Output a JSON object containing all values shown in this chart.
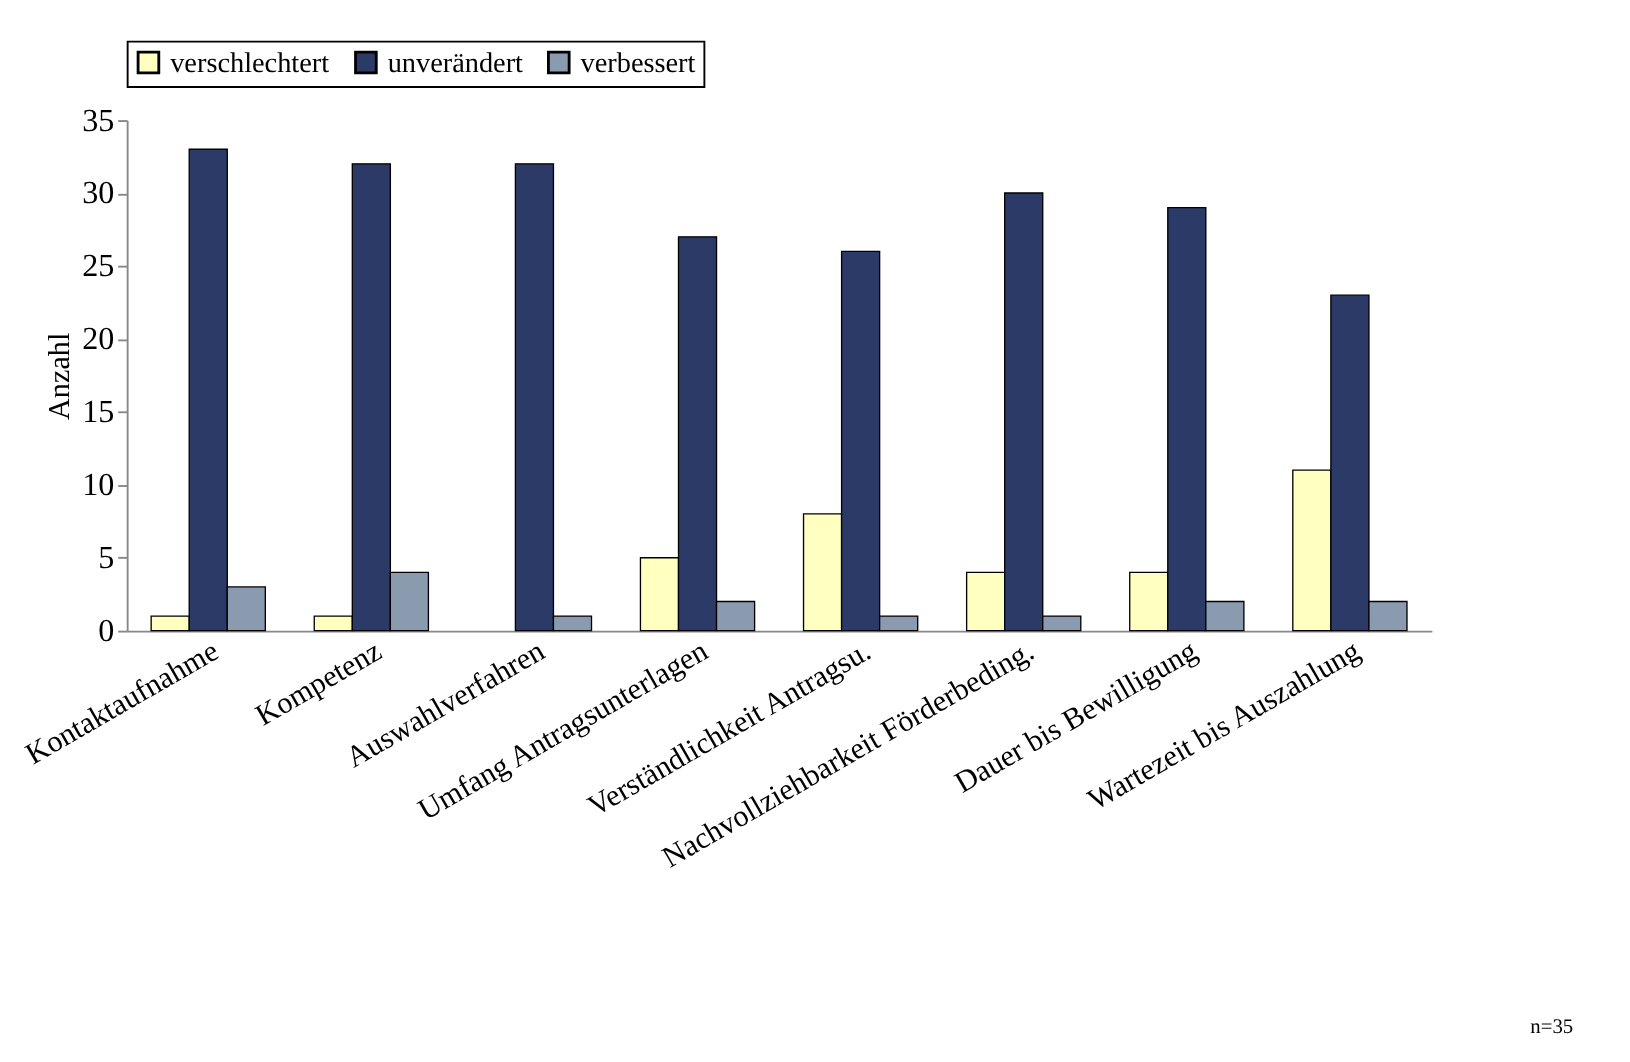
{
  "chart_data": {
    "type": "bar",
    "ylabel": "Anzahl",
    "categories": [
      "Kontaktaufnahme",
      "Kompetenz",
      "Auswahlverfahren",
      "Umfang Antragsunterlagen",
      "Verständlichkeit Antragsu.",
      "Nachvollziehbarkeit Förderbeding.",
      "Dauer bis Bewilligung",
      "Wartezeit bis Auszahlung"
    ],
    "series": [
      {
        "name": "verschlechtert",
        "color": "#ffffc0",
        "values": [
          1,
          1,
          0,
          5,
          8,
          4,
          4,
          11
        ]
      },
      {
        "name": "unverändert",
        "color": "#2b3a67",
        "values": [
          33,
          32,
          32,
          27,
          26,
          30,
          29,
          23
        ]
      },
      {
        "name": "verbessert",
        "color": "#8a9bb0",
        "values": [
          3,
          4,
          1,
          2,
          1,
          1,
          2,
          2
        ]
      }
    ],
    "ylim": [
      0,
      35
    ],
    "yticks": [
      0,
      5,
      10,
      15,
      20,
      25,
      30,
      35
    ],
    "grid": false,
    "legend": "top",
    "annotations": [
      "n=35"
    ]
  }
}
